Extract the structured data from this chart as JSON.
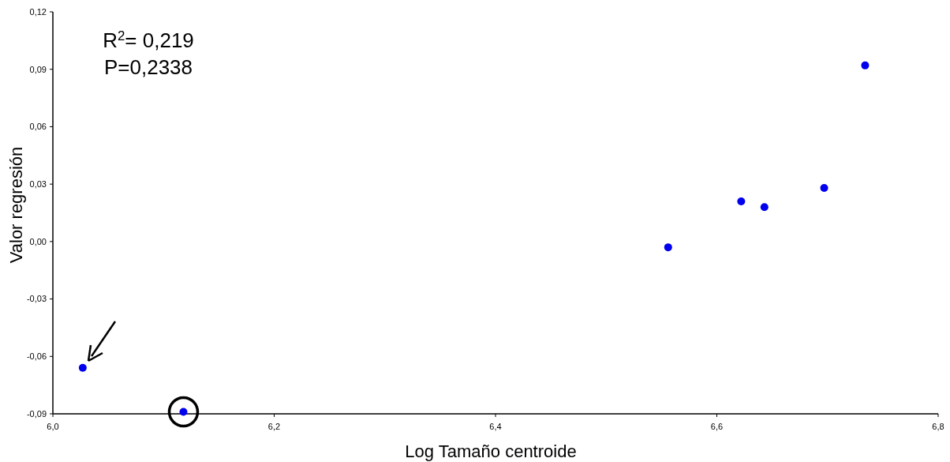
{
  "chart_data": {
    "type": "scatter",
    "xlabel": "Log Tamaño centroide",
    "ylabel": "Valor regresión",
    "annotations": [
      "R$^{2}$= 0,219",
      "P=0,2338"
    ],
    "x": [
      6.027,
      6.118,
      6.556,
      6.622,
      6.643,
      6.697,
      6.734
    ],
    "values": [
      -0.066,
      -0.089,
      -0.003,
      0.021,
      0.018,
      0.028,
      0.092
    ],
    "color": "#0000ee",
    "marker": "circle",
    "grid": false,
    "xlim": [
      6.0,
      6.8
    ],
    "xticks": [
      {
        "value": 6.0,
        "label": "6,0"
      },
      {
        "value": 6.2,
        "label": "6,2"
      },
      {
        "value": 6.4,
        "label": "6,4"
      },
      {
        "value": 6.6,
        "label": "6,6"
      },
      {
        "value": 6.8,
        "label": "6,8"
      }
    ],
    "ylim": [
      -0.09,
      0.12
    ],
    "yticks": [
      {
        "value": -0.09,
        "label": "-0,09"
      },
      {
        "value": -0.06,
        "label": "-0,06"
      },
      {
        "value": -0.03,
        "label": "-0,03"
      },
      {
        "value": 0,
        "label": "0,00"
      },
      {
        "value": 0.03,
        "label": "0,03"
      },
      {
        "value": 0.06,
        "label": "0,06"
      },
      {
        "value": 0.09,
        "label": "0,09"
      },
      {
        "value": 0.12,
        "label": "0,12"
      }
    ]
  }
}
